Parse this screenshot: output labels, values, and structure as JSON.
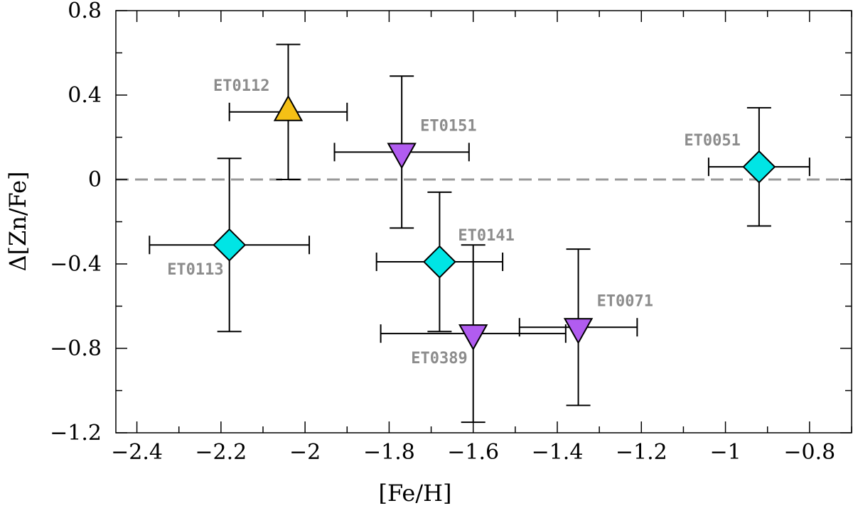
{
  "chart_data": {
    "type": "scatter",
    "title": "",
    "xlabel": "[Fe/H]",
    "ylabel": "Δ[Zn/Fe]",
    "xlim": [
      -2.45,
      -0.7
    ],
    "ylim": [
      -1.2,
      0.8
    ],
    "x_ticks": [
      -2.4,
      -2.2,
      -2,
      -1.8,
      -1.6,
      -1.4,
      -1.2,
      -1,
      -0.8
    ],
    "x_tick_labels": [
      "−2.4",
      "−2.2",
      "−2",
      "−1.8",
      "−1.6",
      "−1.4",
      "−1.2",
      "−1",
      "−0.8"
    ],
    "x_minor_step": 0.1,
    "y_ticks": [
      0.8,
      0.4,
      0,
      -0.4,
      -0.8,
      -1.2
    ],
    "y_tick_labels": [
      "0.8",
      "0.4",
      "0",
      "−0.4",
      "−0.8",
      "−1.2"
    ],
    "y_minor_step": 0.2,
    "reference_line": {
      "y": 0,
      "style": "dashed",
      "color": "#999999"
    },
    "points": [
      {
        "label": "ET0112",
        "x": -2.04,
        "y": 0.32,
        "xerr": [
          0.14,
          0.14
        ],
        "yerr": [
          0.32,
          0.32
        ],
        "marker": "triangle-up",
        "color": "#f5c016",
        "label_pos": "upper-left"
      },
      {
        "label": "ET0151",
        "x": -1.77,
        "y": 0.13,
        "xerr": [
          0.16,
          0.16
        ],
        "yerr": [
          0.36,
          0.36
        ],
        "marker": "triangle-down",
        "color": "#b15cf0",
        "label_pos": "upper-right"
      },
      {
        "label": "ET0051",
        "x": -0.92,
        "y": 0.06,
        "xerr": [
          0.12,
          0.12
        ],
        "yerr": [
          0.28,
          0.28
        ],
        "marker": "diamond",
        "color": "#00e5e5",
        "label_pos": "upper-left"
      },
      {
        "label": "ET0113",
        "x": -2.18,
        "y": -0.31,
        "xerr": [
          0.19,
          0.19
        ],
        "yerr": [
          0.41,
          0.41
        ],
        "marker": "diamond",
        "color": "#00e5e5",
        "label_pos": "lower-left"
      },
      {
        "label": "ET0141",
        "x": -1.68,
        "y": -0.39,
        "xerr": [
          0.15,
          0.15
        ],
        "yerr": [
          0.33,
          0.33
        ],
        "marker": "diamond",
        "color": "#00e5e5",
        "label_pos": "upper-right"
      },
      {
        "label": "ET0389",
        "x": -1.6,
        "y": -0.73,
        "xerr": [
          0.22,
          0.22
        ],
        "yerr": [
          0.42,
          0.42
        ],
        "marker": "triangle-down",
        "color": "#b15cf0",
        "label_pos": "lower-left"
      },
      {
        "label": "ET0071",
        "x": -1.35,
        "y": -0.7,
        "xerr": [
          0.14,
          0.14
        ],
        "yerr": [
          0.37,
          0.37
        ],
        "marker": "triangle-down",
        "color": "#b15cf0",
        "label_pos": "upper-right"
      }
    ]
  }
}
